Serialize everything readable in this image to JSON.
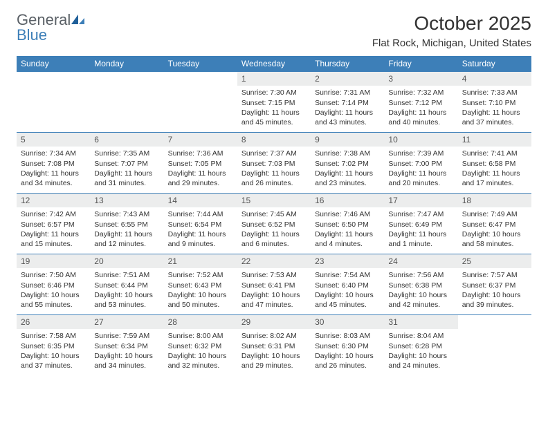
{
  "logo": {
    "word1": "General",
    "word2": "Blue"
  },
  "title": "October 2025",
  "location": "Flat Rock, Michigan, United States",
  "header_color": "#3d7fb8",
  "daynum_bg": "#eceded",
  "border_color": "#3d7fb8",
  "weekdays": [
    "Sunday",
    "Monday",
    "Tuesday",
    "Wednesday",
    "Thursday",
    "Friday",
    "Saturday"
  ],
  "weeks": [
    [
      {
        "blank": true
      },
      {
        "blank": true
      },
      {
        "blank": true
      },
      {
        "n": "1",
        "sr": "7:30 AM",
        "ss": "7:15 PM",
        "dl": "11 hours and 45 minutes."
      },
      {
        "n": "2",
        "sr": "7:31 AM",
        "ss": "7:14 PM",
        "dl": "11 hours and 43 minutes."
      },
      {
        "n": "3",
        "sr": "7:32 AM",
        "ss": "7:12 PM",
        "dl": "11 hours and 40 minutes."
      },
      {
        "n": "4",
        "sr": "7:33 AM",
        "ss": "7:10 PM",
        "dl": "11 hours and 37 minutes."
      }
    ],
    [
      {
        "n": "5",
        "sr": "7:34 AM",
        "ss": "7:08 PM",
        "dl": "11 hours and 34 minutes."
      },
      {
        "n": "6",
        "sr": "7:35 AM",
        "ss": "7:07 PM",
        "dl": "11 hours and 31 minutes."
      },
      {
        "n": "7",
        "sr": "7:36 AM",
        "ss": "7:05 PM",
        "dl": "11 hours and 29 minutes."
      },
      {
        "n": "8",
        "sr": "7:37 AM",
        "ss": "7:03 PM",
        "dl": "11 hours and 26 minutes."
      },
      {
        "n": "9",
        "sr": "7:38 AM",
        "ss": "7:02 PM",
        "dl": "11 hours and 23 minutes."
      },
      {
        "n": "10",
        "sr": "7:39 AM",
        "ss": "7:00 PM",
        "dl": "11 hours and 20 minutes."
      },
      {
        "n": "11",
        "sr": "7:41 AM",
        "ss": "6:58 PM",
        "dl": "11 hours and 17 minutes."
      }
    ],
    [
      {
        "n": "12",
        "sr": "7:42 AM",
        "ss": "6:57 PM",
        "dl": "11 hours and 15 minutes."
      },
      {
        "n": "13",
        "sr": "7:43 AM",
        "ss": "6:55 PM",
        "dl": "11 hours and 12 minutes."
      },
      {
        "n": "14",
        "sr": "7:44 AM",
        "ss": "6:54 PM",
        "dl": "11 hours and 9 minutes."
      },
      {
        "n": "15",
        "sr": "7:45 AM",
        "ss": "6:52 PM",
        "dl": "11 hours and 6 minutes."
      },
      {
        "n": "16",
        "sr": "7:46 AM",
        "ss": "6:50 PM",
        "dl": "11 hours and 4 minutes."
      },
      {
        "n": "17",
        "sr": "7:47 AM",
        "ss": "6:49 PM",
        "dl": "11 hours and 1 minute."
      },
      {
        "n": "18",
        "sr": "7:49 AM",
        "ss": "6:47 PM",
        "dl": "10 hours and 58 minutes."
      }
    ],
    [
      {
        "n": "19",
        "sr": "7:50 AM",
        "ss": "6:46 PM",
        "dl": "10 hours and 55 minutes."
      },
      {
        "n": "20",
        "sr": "7:51 AM",
        "ss": "6:44 PM",
        "dl": "10 hours and 53 minutes."
      },
      {
        "n": "21",
        "sr": "7:52 AM",
        "ss": "6:43 PM",
        "dl": "10 hours and 50 minutes."
      },
      {
        "n": "22",
        "sr": "7:53 AM",
        "ss": "6:41 PM",
        "dl": "10 hours and 47 minutes."
      },
      {
        "n": "23",
        "sr": "7:54 AM",
        "ss": "6:40 PM",
        "dl": "10 hours and 45 minutes."
      },
      {
        "n": "24",
        "sr": "7:56 AM",
        "ss": "6:38 PM",
        "dl": "10 hours and 42 minutes."
      },
      {
        "n": "25",
        "sr": "7:57 AM",
        "ss": "6:37 PM",
        "dl": "10 hours and 39 minutes."
      }
    ],
    [
      {
        "n": "26",
        "sr": "7:58 AM",
        "ss": "6:35 PM",
        "dl": "10 hours and 37 minutes."
      },
      {
        "n": "27",
        "sr": "7:59 AM",
        "ss": "6:34 PM",
        "dl": "10 hours and 34 minutes."
      },
      {
        "n": "28",
        "sr": "8:00 AM",
        "ss": "6:32 PM",
        "dl": "10 hours and 32 minutes."
      },
      {
        "n": "29",
        "sr": "8:02 AM",
        "ss": "6:31 PM",
        "dl": "10 hours and 29 minutes."
      },
      {
        "n": "30",
        "sr": "8:03 AM",
        "ss": "6:30 PM",
        "dl": "10 hours and 26 minutes."
      },
      {
        "n": "31",
        "sr": "8:04 AM",
        "ss": "6:28 PM",
        "dl": "10 hours and 24 minutes."
      },
      {
        "blank": true
      }
    ]
  ],
  "labels": {
    "sunrise": "Sunrise: ",
    "sunset": "Sunset: ",
    "daylight": "Daylight: "
  }
}
